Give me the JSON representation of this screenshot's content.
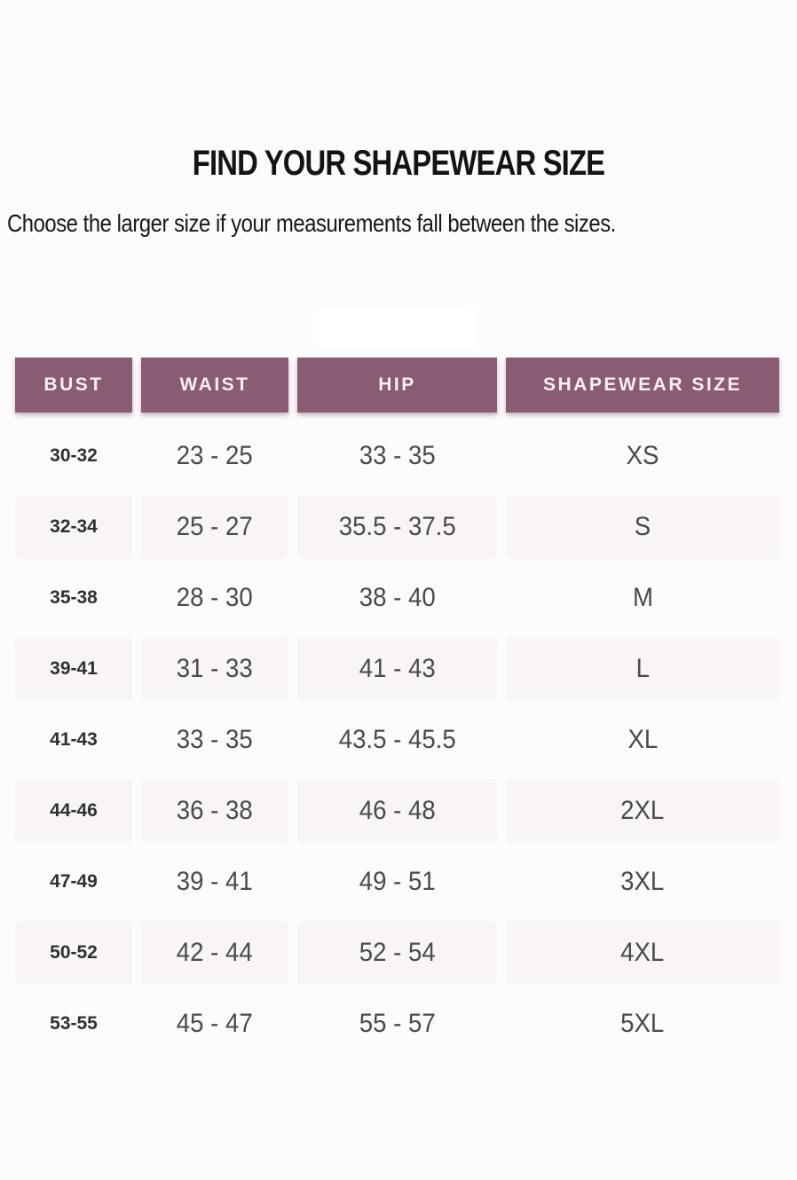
{
  "page": {
    "title": "FIND YOUR SHAPEWEAR SIZE",
    "subtitle": "Choose the larger size if your measurements fall between the sizes."
  },
  "table": {
    "columns": [
      "BUST",
      "WAIST",
      "HIP",
      "SHAPEWEAR SIZE"
    ],
    "rows": [
      {
        "bust": "30-32",
        "waist": "23 - 25",
        "hip": "33 - 35",
        "size": "XS"
      },
      {
        "bust": "32-34",
        "waist": "25 - 27",
        "hip": "35.5 - 37.5",
        "size": "S"
      },
      {
        "bust": "35-38",
        "waist": "28 - 30",
        "hip": "38 - 40",
        "size": "M"
      },
      {
        "bust": "39-41",
        "waist": "31 - 33",
        "hip": "41 - 43",
        "size": "L"
      },
      {
        "bust": "41-43",
        "waist": "33 - 35",
        "hip": "43.5 - 45.5",
        "size": "XL"
      },
      {
        "bust": "44-46",
        "waist": "36 - 38",
        "hip": "46 - 48",
        "size": "2XL"
      },
      {
        "bust": "47-49",
        "waist": "39 - 41",
        "hip": "49 - 51",
        "size": "3XL"
      },
      {
        "bust": "50-52",
        "waist": "42 - 44",
        "hip": "52 - 54",
        "size": "4XL"
      },
      {
        "bust": "53-55",
        "waist": "45 - 47",
        "hip": "55 - 57",
        "size": "5XL"
      }
    ]
  },
  "colors": {
    "header_bg": "#8a5c74",
    "header_text": "#f8eef5",
    "row_alt_bg": "#f9f4f6",
    "data_text": "#4a4a4c",
    "bust_text": "#303032"
  }
}
